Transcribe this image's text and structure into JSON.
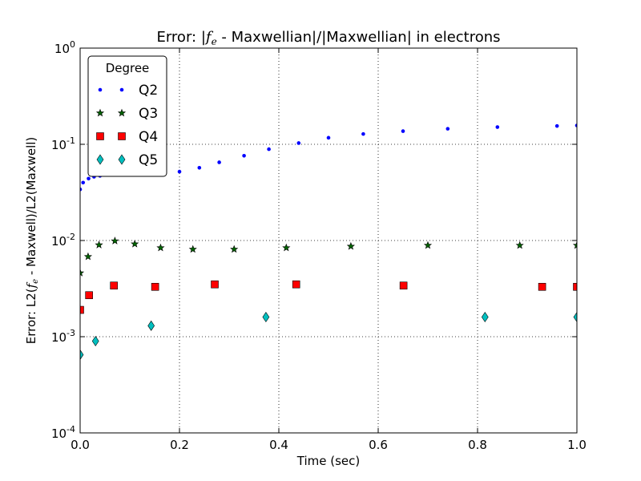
{
  "chart_data": {
    "type": "scatter",
    "title_prefix": "Error: |",
    "title_math_main": "f",
    "title_math_sub": "e",
    "title_suffix": " - Maxwellian|/|Maxwellian| in electrons",
    "xlabel": "Time (sec)",
    "ylabel_prefix": "Error: L2(",
    "ylabel_math_main": "f",
    "ylabel_math_sub": "e",
    "ylabel_suffix": " - Maxwell)/L2(Maxwell)",
    "xlim": [
      0,
      1
    ],
    "ylim": [
      0.0001,
      1
    ],
    "yscale": "log",
    "grid": true,
    "legend": {
      "title": "Degree",
      "placement": "top-left"
    },
    "x_ticks": [
      {
        "value": 0.0,
        "label": "0.0"
      },
      {
        "value": 0.2,
        "label": "0.2"
      },
      {
        "value": 0.4,
        "label": "0.4"
      },
      {
        "value": 0.6,
        "label": "0.6"
      },
      {
        "value": 0.8,
        "label": "0.8"
      },
      {
        "value": 1.0,
        "label": "1.0"
      }
    ],
    "y_ticks": [
      {
        "value": 0.0001,
        "base": "10",
        "exp": "-4"
      },
      {
        "value": 0.001,
        "base": "10",
        "exp": "-3"
      },
      {
        "value": 0.01,
        "base": "10",
        "exp": "-2"
      },
      {
        "value": 0.1,
        "base": "10",
        "exp": "-1"
      },
      {
        "value": 1,
        "base": "10",
        "exp": "0"
      }
    ],
    "series": [
      {
        "name": "Q2",
        "marker": "dot",
        "color": "#0000ff",
        "x": [
          0.0,
          0.006,
          0.017,
          0.028,
          0.04,
          0.053,
          0.07,
          0.09,
          0.112,
          0.14,
          0.17,
          0.2,
          0.24,
          0.28,
          0.33,
          0.38,
          0.44,
          0.5,
          0.57,
          0.65,
          0.74,
          0.84,
          0.96,
          1.0
        ],
        "y": [
          0.034,
          0.04,
          0.044,
          0.046,
          0.047,
          0.048,
          0.048,
          0.049,
          0.049,
          0.05,
          0.05,
          0.052,
          0.057,
          0.065,
          0.076,
          0.089,
          0.103,
          0.117,
          0.128,
          0.137,
          0.145,
          0.151,
          0.155,
          0.157
        ]
      },
      {
        "name": "Q3",
        "marker": "star",
        "color": "#006400",
        "x": [
          0.0,
          0.016,
          0.038,
          0.07,
          0.11,
          0.162,
          0.227,
          0.31,
          0.415,
          0.545,
          0.7,
          0.885,
          1.0
        ],
        "y": [
          0.0046,
          0.0068,
          0.009,
          0.0099,
          0.0092,
          0.0084,
          0.0081,
          0.0081,
          0.0084,
          0.0087,
          0.0089,
          0.0089,
          0.0089
        ]
      },
      {
        "name": "Q4",
        "marker": "square",
        "color": "#ff0000",
        "x": [
          0.0,
          0.018,
          0.068,
          0.151,
          0.271,
          0.435,
          0.651,
          0.93,
          1.0
        ],
        "y": [
          0.0019,
          0.0027,
          0.0034,
          0.0033,
          0.0035,
          0.0035,
          0.0034,
          0.0033,
          0.0033
        ]
      },
      {
        "name": "Q5",
        "marker": "diamond",
        "color": "#00bfbf",
        "x": [
          0.0,
          0.031,
          0.143,
          0.374,
          0.815,
          1.0
        ],
        "y": [
          0.00065,
          0.0009,
          0.0013,
          0.0016,
          0.0016,
          0.0016
        ]
      }
    ]
  }
}
